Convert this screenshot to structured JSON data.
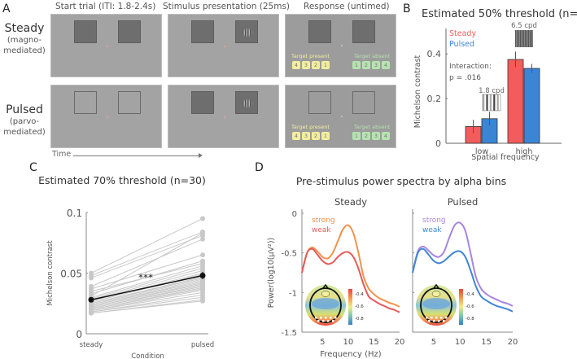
{
  "panel_a": {
    "letter": "A",
    "column_headers": [
      "Start trial (ITI: 1.8-2.4s)",
      "Stimulus presentation (25ms)",
      "Response (untimed)"
    ],
    "rows": [
      {
        "name": "Steady",
        "sub1": "(magno-",
        "sub2": "mediated)",
        "placeholder_style": "filled"
      },
      {
        "name": "Pulsed",
        "sub1": "(parvo-",
        "sub2": "mediated)",
        "placeholder_style": "outline"
      }
    ],
    "response": {
      "present_label": "Target present",
      "absent_label": "Target absent",
      "present_keys": [
        "4",
        "3",
        "2",
        "1"
      ],
      "absent_keys": [
        "1",
        "2",
        "3",
        "4"
      ]
    },
    "time_label": "Time",
    "colors": {
      "fixation_start": "#e9a0a0",
      "fixation_response": "#a8d8ee",
      "present_key": "#f2ee9e",
      "absent_key": "#b6e3b0"
    }
  },
  "chart_data": [
    {
      "id": "B",
      "type": "bar",
      "title": "Estimated 50% threshold (n=9)",
      "xlabel": "Spatial frequency",
      "ylabel": "Michelson contrast",
      "categories": [
        "low",
        "high"
      ],
      "series": [
        {
          "name": "Steady",
          "color": "#f25c5c",
          "values": [
            0.075,
            0.375
          ],
          "errors": [
            0.03,
            0.035
          ]
        },
        {
          "name": "Pulsed",
          "color": "#3a86d4",
          "values": [
            0.11,
            0.335
          ],
          "errors": [
            0.03,
            0.02
          ]
        }
      ],
      "ylim": [
        0,
        0.55
      ],
      "yticks": [
        0,
        0.2,
        0.4
      ],
      "ytick_labels": [
        "0",
        "0.2",
        "0.4"
      ],
      "annotations": [
        "Interaction:",
        "p = .016",
        "1.8 cpd",
        "6.5 cpd"
      ],
      "legend": "top-left"
    },
    {
      "id": "C",
      "type": "line",
      "title": "Estimated 70% threshold (n=30)",
      "xlabel": "Condition",
      "ylabel": "Michelson contrast",
      "categories": [
        "steady",
        "pulsed"
      ],
      "ylim": [
        0,
        0.1
      ],
      "yticks": [
        0,
        0.05,
        0.1
      ],
      "ytick_labels": [
        "0",
        "0.05",
        "0.1"
      ],
      "significance": "***",
      "mean": {
        "steady": 0.028,
        "pulsed": 0.048,
        "color": "#111111"
      },
      "subjects": [
        [
          0.05,
          0.095
        ],
        [
          0.048,
          0.084
        ],
        [
          0.046,
          0.081
        ],
        [
          0.039,
          0.078
        ],
        [
          0.031,
          0.083
        ],
        [
          0.037,
          0.065
        ],
        [
          0.033,
          0.06
        ],
        [
          0.035,
          0.058
        ],
        [
          0.03,
          0.056
        ],
        [
          0.029,
          0.054
        ],
        [
          0.028,
          0.052
        ],
        [
          0.027,
          0.05
        ],
        [
          0.026,
          0.049
        ],
        [
          0.025,
          0.047
        ],
        [
          0.025,
          0.046
        ],
        [
          0.024,
          0.045
        ],
        [
          0.023,
          0.044
        ],
        [
          0.023,
          0.043
        ],
        [
          0.022,
          0.042
        ],
        [
          0.022,
          0.041
        ],
        [
          0.021,
          0.04
        ],
        [
          0.021,
          0.039
        ],
        [
          0.02,
          0.038
        ],
        [
          0.02,
          0.037
        ],
        [
          0.019,
          0.036
        ],
        [
          0.019,
          0.034
        ],
        [
          0.018,
          0.032
        ],
        [
          0.018,
          0.03
        ],
        [
          0.017,
          0.028
        ],
        [
          0.017,
          0.027
        ]
      ],
      "subject_color": "#c8c8c8"
    },
    {
      "id": "D",
      "type": "line",
      "suptitle": "Pre-stimulus power spectra by alpha bins",
      "xlabel": "Frequency (Hz)",
      "ylabel": "Power(log10(μV²))",
      "xlim": [
        1,
        20
      ],
      "ylim": [
        -1.5,
        0
      ],
      "xticks": [
        5,
        10,
        15,
        20
      ],
      "yticks": [
        0,
        -0.5,
        -1,
        -1.5
      ],
      "ytick_labels": [
        "0",
        "-0.5",
        "-1",
        "-1.5"
      ],
      "freq": [
        1,
        2,
        3,
        4,
        5,
        6,
        7,
        8,
        9,
        10,
        11,
        12,
        13,
        14,
        15,
        16,
        17,
        18,
        19,
        20
      ],
      "subplots": [
        {
          "title": "Steady",
          "series": [
            {
              "name": "strong",
              "color": "#f2924a",
              "values": [
                -0.75,
                -0.5,
                -0.43,
                -0.48,
                -0.55,
                -0.57,
                -0.5,
                -0.35,
                -0.2,
                -0.15,
                -0.25,
                -0.5,
                -0.8,
                -0.95,
                -1.02,
                -1.07,
                -1.1,
                -1.13,
                -1.15,
                -1.18
              ]
            },
            {
              "name": "weak",
              "color": "#e65a5a",
              "values": [
                -0.75,
                -0.5,
                -0.45,
                -0.52,
                -0.6,
                -0.64,
                -0.62,
                -0.55,
                -0.5,
                -0.49,
                -0.55,
                -0.7,
                -0.9,
                -1.05,
                -1.1,
                -1.14,
                -1.17,
                -1.2,
                -1.22,
                -1.25
              ]
            }
          ],
          "topomap_colorbar": [
            "-0.4",
            "-0.6",
            "-0.8"
          ]
        },
        {
          "title": "Pulsed",
          "series": [
            {
              "name": "strong",
              "color": "#a785e0",
              "values": [
                -0.75,
                -0.48,
                -0.42,
                -0.47,
                -0.53,
                -0.55,
                -0.48,
                -0.3,
                -0.15,
                -0.12,
                -0.22,
                -0.5,
                -0.8,
                -0.95,
                -1.02,
                -1.06,
                -1.09,
                -1.12,
                -1.14,
                -1.17
              ]
            },
            {
              "name": "weak",
              "color": "#3f86d6",
              "values": [
                -0.75,
                -0.5,
                -0.45,
                -0.52,
                -0.6,
                -0.63,
                -0.6,
                -0.54,
                -0.49,
                -0.48,
                -0.55,
                -0.72,
                -0.92,
                -1.05,
                -1.1,
                -1.14,
                -1.17,
                -1.19,
                -1.21,
                -1.24
              ]
            }
          ],
          "topomap_colorbar": [
            "-0.4",
            "-0.6",
            "-0.8"
          ]
        }
      ]
    }
  ],
  "panel_labels": {
    "b": "B",
    "c": "C",
    "d": "D"
  }
}
